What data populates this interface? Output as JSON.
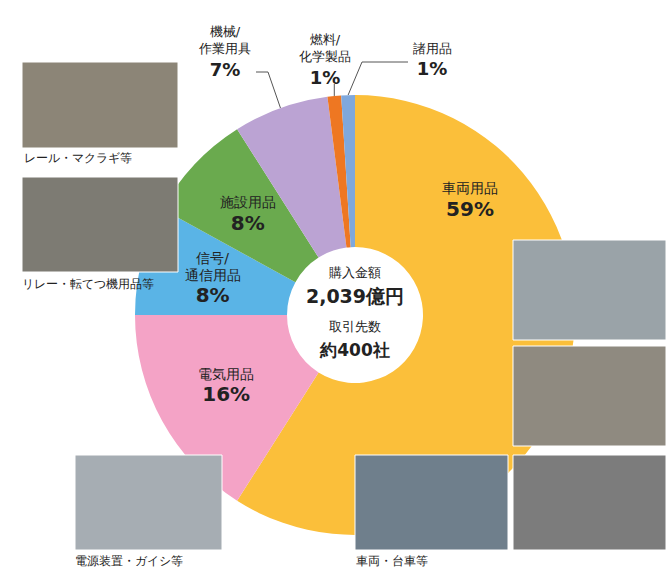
{
  "chart_data": {
    "type": "pie",
    "categories": [
      "車両用品",
      "電気用品",
      "信号/通信用品",
      "施設用品",
      "機械/作業用具",
      "燃料/化学製品",
      "諸用品"
    ],
    "values": [
      59,
      16,
      8,
      8,
      7,
      1,
      1
    ],
    "value_labels": [
      "59%",
      "16%",
      "8%",
      "8%",
      "7%",
      "1%",
      "1%"
    ],
    "colors": [
      "#fbbf3a",
      "#f4a3c6",
      "#5ab4e6",
      "#6aaa4e",
      "#bba3d3",
      "#ee7722",
      "#7fa8dc"
    ],
    "data_labels": true,
    "center_text": [
      "購入金額",
      "2,039億円",
      "取引先数",
      "約400社"
    ],
    "photo_captions": [
      "レール・マクラギ等",
      "リレー・転てつ機用品等",
      "電源装置・ガイシ等",
      "車両・台車等"
    ]
  }
}
